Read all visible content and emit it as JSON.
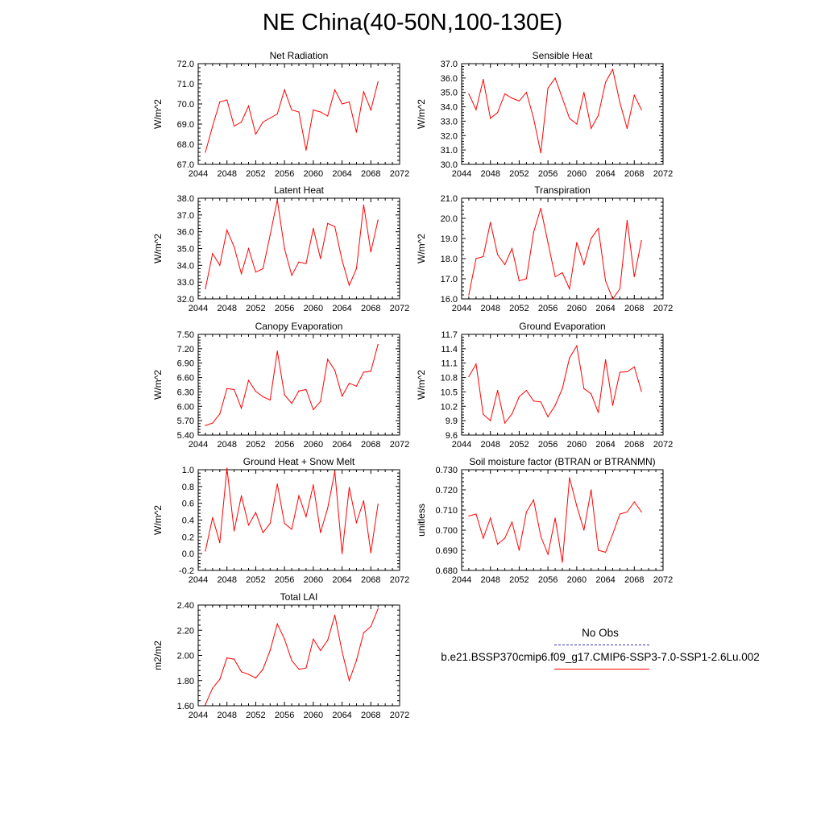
{
  "title": "NE China(40-50N,100-130E)",
  "line_color": "#ff0000",
  "obs_color": "#3333aa",
  "legend": {
    "obs_label": "No Obs",
    "case_label": "b.e21.BSSP370cmip6.f09_g17.CMIP6-SSP3-7.0-SSP1-2.6Lu.002"
  },
  "chart_data": [
    {
      "type": "line",
      "title": "Net Radiation",
      "ylabel": "W/m^2",
      "xlim": [
        2044,
        2072
      ],
      "ylim": [
        67.0,
        72.0
      ],
      "xticks": [
        "2044",
        "2048",
        "2052",
        "2056",
        "2060",
        "2064",
        "2068",
        "2072"
      ],
      "yticks": [
        "67.0",
        "68.0",
        "69.0",
        "70.0",
        "71.0",
        "72.0"
      ],
      "x": [
        2045,
        2046,
        2047,
        2048,
        2049,
        2050,
        2051,
        2052,
        2053,
        2054,
        2055,
        2056,
        2057,
        2058,
        2059,
        2060,
        2061,
        2062,
        2063,
        2064,
        2065,
        2066,
        2067,
        2068,
        2069
      ],
      "values": [
        67.6,
        68.9,
        70.1,
        70.2,
        68.9,
        69.1,
        69.9,
        68.5,
        69.1,
        69.3,
        69.5,
        70.7,
        69.7,
        69.6,
        67.7,
        69.7,
        69.6,
        69.4,
        70.7,
        70.0,
        70.1,
        68.6,
        70.6,
        69.7,
        71.1
      ]
    },
    {
      "type": "line",
      "title": "Sensible Heat",
      "ylabel": "W/m^2",
      "xlim": [
        2044,
        2072
      ],
      "ylim": [
        30.0,
        37.0
      ],
      "xticks": [
        "2044",
        "2048",
        "2052",
        "2056",
        "2060",
        "2064",
        "2068",
        "2072"
      ],
      "yticks": [
        "30.0",
        "31.0",
        "32.0",
        "33.0",
        "34.0",
        "35.0",
        "36.0",
        "37.0"
      ],
      "x": [
        2045,
        2046,
        2047,
        2048,
        2049,
        2050,
        2051,
        2052,
        2053,
        2054,
        2055,
        2056,
        2057,
        2058,
        2059,
        2060,
        2061,
        2062,
        2063,
        2064,
        2065,
        2066,
        2067,
        2068,
        2069
      ],
      "values": [
        34.9,
        33.8,
        35.9,
        33.2,
        33.6,
        34.9,
        34.6,
        34.4,
        35.0,
        33.2,
        30.8,
        35.3,
        36.0,
        34.6,
        33.2,
        32.8,
        35.0,
        32.5,
        33.4,
        35.7,
        36.6,
        34.3,
        32.5,
        34.8,
        33.8
      ]
    },
    {
      "type": "line",
      "title": "Latent Heat",
      "ylabel": "W/m^2",
      "xlim": [
        2044,
        2072
      ],
      "ylim": [
        32.0,
        38.0
      ],
      "xticks": [
        "2044",
        "2048",
        "2052",
        "2056",
        "2060",
        "2064",
        "2068",
        "2072"
      ],
      "yticks": [
        "32.0",
        "33.0",
        "34.0",
        "35.0",
        "36.0",
        "37.0",
        "38.0"
      ],
      "x": [
        2045,
        2046,
        2047,
        2048,
        2049,
        2050,
        2051,
        2052,
        2053,
        2054,
        2055,
        2056,
        2057,
        2058,
        2059,
        2060,
        2061,
        2062,
        2063,
        2064,
        2065,
        2066,
        2067,
        2068,
        2069
      ],
      "values": [
        32.6,
        34.7,
        34.0,
        36.1,
        35.1,
        33.5,
        35.0,
        33.6,
        33.8,
        35.8,
        37.9,
        35.0,
        33.4,
        34.2,
        34.1,
        36.2,
        34.4,
        36.5,
        36.3,
        34.3,
        32.8,
        33.8,
        37.6,
        34.8,
        36.7
      ]
    },
    {
      "type": "line",
      "title": "Transpiration",
      "ylabel": "W/m^2",
      "xlim": [
        2044,
        2072
      ],
      "ylim": [
        16.0,
        21.0
      ],
      "xticks": [
        "2044",
        "2048",
        "2052",
        "2056",
        "2060",
        "2064",
        "2068",
        "2072"
      ],
      "yticks": [
        "16.0",
        "17.0",
        "18.0",
        "19.0",
        "20.0",
        "21.0"
      ],
      "x": [
        2045,
        2046,
        2047,
        2048,
        2049,
        2050,
        2051,
        2052,
        2053,
        2054,
        2055,
        2056,
        2057,
        2058,
        2059,
        2060,
        2061,
        2062,
        2063,
        2064,
        2065,
        2066,
        2067,
        2068,
        2069
      ],
      "values": [
        16.2,
        18.0,
        18.1,
        19.8,
        18.2,
        17.7,
        18.5,
        16.9,
        17.0,
        19.3,
        20.5,
        18.8,
        17.1,
        17.3,
        16.5,
        18.8,
        17.7,
        19.0,
        19.5,
        16.9,
        16.0,
        16.5,
        19.9,
        17.1,
        18.9
      ]
    },
    {
      "type": "line",
      "title": "Canopy Evaporation",
      "ylabel": "W/m^2",
      "xlim": [
        2044,
        2072
      ],
      "ylim": [
        5.4,
        7.5
      ],
      "xticks": [
        "2044",
        "2048",
        "2052",
        "2056",
        "2060",
        "2064",
        "2068",
        "2072"
      ],
      "yticks": [
        "5.40",
        "5.70",
        "6.00",
        "6.30",
        "6.60",
        "6.90",
        "7.20",
        "7.50"
      ],
      "x": [
        2045,
        2046,
        2047,
        2048,
        2049,
        2050,
        2051,
        2052,
        2053,
        2054,
        2055,
        2056,
        2057,
        2058,
        2059,
        2060,
        2061,
        2062,
        2063,
        2064,
        2065,
        2066,
        2067,
        2068,
        2069
      ],
      "values": [
        5.6,
        5.65,
        5.84,
        6.37,
        6.35,
        5.96,
        6.54,
        6.31,
        6.2,
        6.13,
        7.15,
        6.24,
        6.06,
        6.32,
        6.35,
        5.93,
        6.1,
        6.98,
        6.75,
        6.21,
        6.48,
        6.42,
        6.71,
        6.73,
        7.29
      ]
    },
    {
      "type": "line",
      "title": "Ground Evaporation",
      "ylabel": "W/m^2",
      "xlim": [
        2044,
        2072
      ],
      "ylim": [
        9.6,
        11.7
      ],
      "xticks": [
        "2044",
        "2048",
        "2052",
        "2056",
        "2060",
        "2064",
        "2068",
        "2072"
      ],
      "yticks": [
        "9.6",
        "9.9",
        "10.2",
        "10.5",
        "10.8",
        "11.1",
        "11.4",
        "11.7"
      ],
      "x": [
        2045,
        2046,
        2047,
        2048,
        2049,
        2050,
        2051,
        2052,
        2053,
        2054,
        2055,
        2056,
        2057,
        2058,
        2059,
        2060,
        2061,
        2062,
        2063,
        2064,
        2065,
        2066,
        2067,
        2068,
        2069
      ],
      "values": [
        10.82,
        11.08,
        10.03,
        9.9,
        10.53,
        9.85,
        10.04,
        10.4,
        10.53,
        10.31,
        10.29,
        9.98,
        10.22,
        10.57,
        11.21,
        11.46,
        10.57,
        10.46,
        10.07,
        11.17,
        10.22,
        10.91,
        10.92,
        11.02,
        10.51
      ]
    },
    {
      "type": "line",
      "title": "Ground Heat + Snow Melt",
      "ylabel": "W/m^2",
      "xlim": [
        2044,
        2072
      ],
      "ylim": [
        -0.2,
        1.0
      ],
      "xticks": [
        "2044",
        "2048",
        "2052",
        "2056",
        "2060",
        "2064",
        "2068",
        "2072"
      ],
      "yticks": [
        "-0.2",
        "0.0",
        "0.2",
        "0.4",
        "0.6",
        "0.8",
        "1.0"
      ],
      "x": [
        2045,
        2046,
        2047,
        2048,
        2049,
        2050,
        2051,
        2052,
        2053,
        2054,
        2055,
        2056,
        2057,
        2058,
        2059,
        2060,
        2061,
        2062,
        2063,
        2064,
        2065,
        2066,
        2067,
        2068,
        2069
      ],
      "values": [
        0.03,
        0.43,
        0.13,
        1.02,
        0.27,
        0.69,
        0.34,
        0.49,
        0.25,
        0.36,
        0.83,
        0.36,
        0.29,
        0.69,
        0.44,
        0.82,
        0.25,
        0.54,
        0.98,
        0.0,
        0.79,
        0.37,
        0.63,
        0.01,
        0.59
      ]
    },
    {
      "type": "line",
      "title": "Soil moisture factor (BTRAN or BTRANMN)",
      "ylabel": "unitless",
      "xlim": [
        2044,
        2072
      ],
      "ylim": [
        0.68,
        0.73
      ],
      "xticks": [
        "2044",
        "2048",
        "2052",
        "2056",
        "2060",
        "2064",
        "2068",
        "2072"
      ],
      "yticks": [
        "0.680",
        "0.690",
        "0.700",
        "0.710",
        "0.720",
        "0.730"
      ],
      "x": [
        2045,
        2046,
        2047,
        2048,
        2049,
        2050,
        2051,
        2052,
        2053,
        2054,
        2055,
        2056,
        2057,
        2058,
        2059,
        2060,
        2061,
        2062,
        2063,
        2064,
        2065,
        2066,
        2067,
        2068,
        2069
      ],
      "values": [
        0.707,
        0.708,
        0.696,
        0.706,
        0.693,
        0.696,
        0.704,
        0.69,
        0.709,
        0.715,
        0.697,
        0.688,
        0.706,
        0.684,
        0.726,
        0.712,
        0.7,
        0.72,
        0.69,
        0.689,
        0.698,
        0.708,
        0.709,
        0.714,
        0.709
      ]
    },
    {
      "type": "line",
      "title": "Total LAI",
      "ylabel": "m2/m2",
      "xlim": [
        2044,
        2072
      ],
      "ylim": [
        1.6,
        2.4
      ],
      "xticks": [
        "2044",
        "2048",
        "2052",
        "2056",
        "2060",
        "2064",
        "2068",
        "2072"
      ],
      "yticks": [
        "1.60",
        "1.80",
        "2.00",
        "2.20",
        "2.40"
      ],
      "x": [
        2045,
        2046,
        2047,
        2048,
        2049,
        2050,
        2051,
        2052,
        2053,
        2054,
        2055,
        2056,
        2057,
        2058,
        2059,
        2060,
        2061,
        2062,
        2063,
        2064,
        2065,
        2066,
        2067,
        2068,
        2069
      ],
      "values": [
        1.61,
        1.74,
        1.81,
        1.98,
        1.97,
        1.87,
        1.85,
        1.82,
        1.89,
        2.04,
        2.25,
        2.13,
        1.96,
        1.89,
        1.9,
        2.13,
        2.04,
        2.12,
        2.32,
        2.03,
        1.8,
        1.96,
        2.18,
        2.23,
        2.37
      ]
    }
  ]
}
